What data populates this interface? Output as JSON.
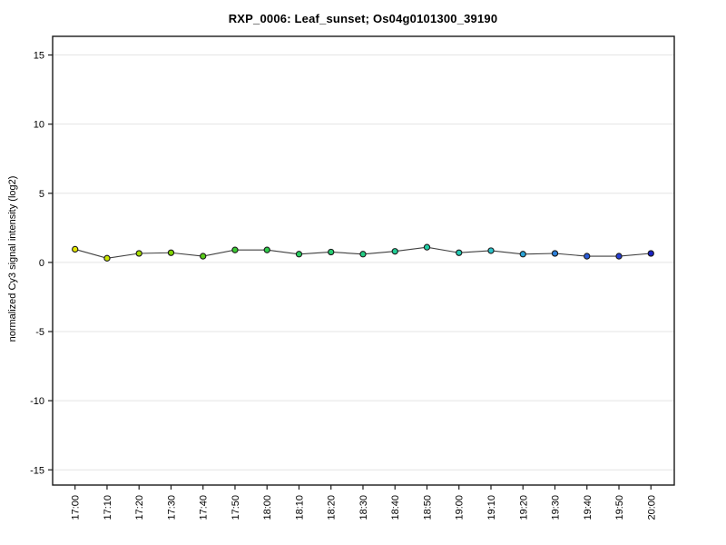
{
  "figure": {
    "title": "RXP_0006: Leaf_sunset; Os04g0101300_39190"
  },
  "chart_data": {
    "type": "line",
    "title": "RXP_0006: Leaf_sunset; Os04g0101300_39190",
    "xlabel": "",
    "ylabel": "normalized Cy3 signal intensity (log2)",
    "x": [
      "17:00",
      "17:10",
      "17:20",
      "17:30",
      "17:40",
      "17:50",
      "18:00",
      "18:10",
      "18:20",
      "18:30",
      "18:40",
      "18:50",
      "19:00",
      "19:10",
      "19:20",
      "19:30",
      "19:40",
      "19:50",
      "20:00"
    ],
    "series": [
      {
        "name": "Os04g0101300_39190",
        "values": [
          0.95,
          0.3,
          0.65,
          0.7,
          0.45,
          0.9,
          0.9,
          0.6,
          0.75,
          0.6,
          0.8,
          1.1,
          0.7,
          0.85,
          0.6,
          0.65,
          0.45,
          0.45,
          0.65
        ],
        "point_colors": [
          "#E4E600",
          "#C9E400",
          "#A6DC00",
          "#7FD400",
          "#58CC19",
          "#3BCC33",
          "#2FCC4B",
          "#29CC5E",
          "#25CC71",
          "#22CC83",
          "#20CC94",
          "#1FCCA4",
          "#24CBB5",
          "#2AC3CB",
          "#2BA3D6",
          "#2B7FDA",
          "#2B5CD9",
          "#273FD4",
          "#1A22C6"
        ],
        "line_color": "#404040"
      }
    ],
    "yticks": [
      -15,
      -10,
      -5,
      0,
      5,
      10,
      15
    ],
    "ylim": [
      -16.1,
      16.35
    ],
    "grid": "horizontal",
    "grid_color": "#E4E4E4",
    "axis_color": "#1A1A1A",
    "point_outline_color": "#1A1A1A",
    "legend": "none"
  }
}
